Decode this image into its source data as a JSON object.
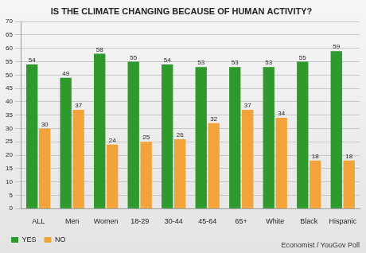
{
  "chart_data": {
    "type": "bar",
    "title": "IS THE CLIMATE CHANGING BECAUSE OF HUMAN ACTIVITY?",
    "categories": [
      "ALL",
      "Men",
      "Women",
      "18-29",
      "30-44",
      "45-64",
      "65+",
      "White",
      "Black",
      "Hispanic"
    ],
    "series": [
      {
        "name": "YES",
        "color": "#2e9a2e",
        "values": [
          54,
          49,
          58,
          55,
          54,
          53,
          53,
          53,
          55,
          59
        ]
      },
      {
        "name": "NO",
        "color": "#f2a33a",
        "values": [
          30,
          37,
          24,
          25,
          26,
          32,
          37,
          34,
          18,
          18
        ]
      }
    ],
    "ylim": [
      0,
      70
    ],
    "yticks": [
      0,
      5,
      10,
      15,
      20,
      25,
      30,
      35,
      40,
      45,
      50,
      55,
      60,
      65,
      70
    ],
    "grid": true,
    "legend": "bottom-left",
    "data_labels": true,
    "annotations": [
      "Economist / YouGov Poll"
    ]
  }
}
